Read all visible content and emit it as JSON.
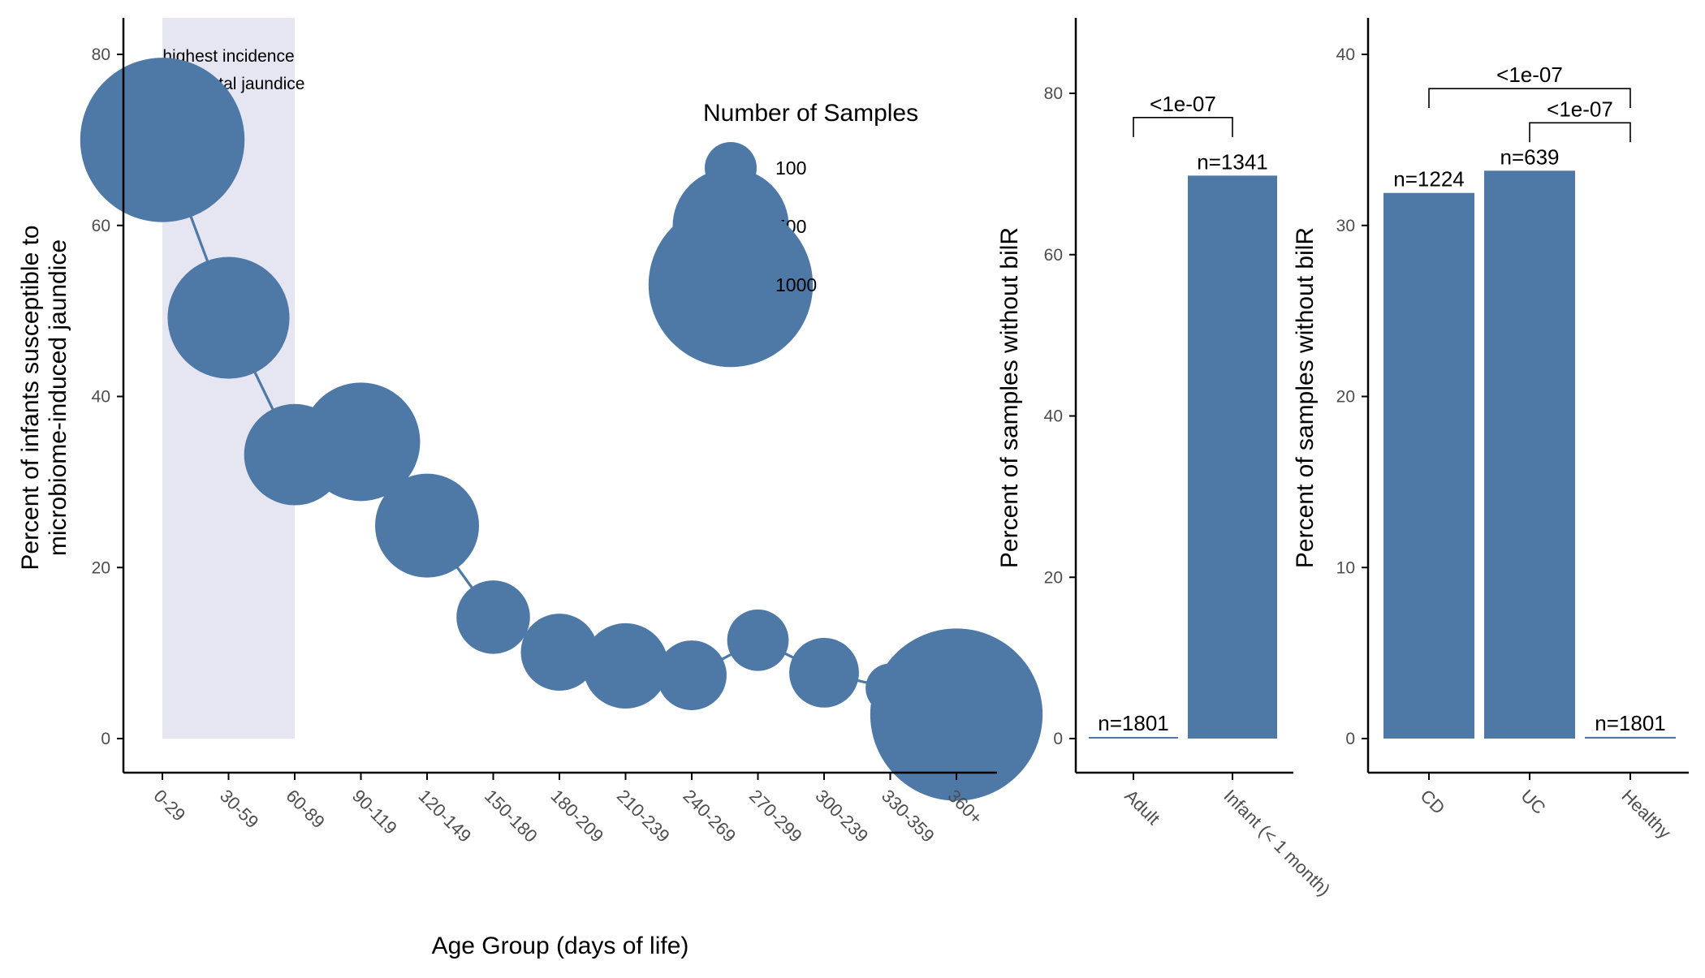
{
  "colors": {
    "series": "#4e79a7",
    "highlight": "#e6e6f2",
    "axis": "#000000",
    "tick_text": "#4d4d4d"
  },
  "chart_data": [
    {
      "type": "scatter",
      "title": "",
      "xlabel": "Age Group (days of life)",
      "ylabel": "Percent of infants susceptible to\nmicrobiome-induced jaundice",
      "ylabel_lines": [
        "Percent of infants susceptible to",
        "microbiome-induced jaundice"
      ],
      "ylim": [
        0,
        80
      ],
      "yticks": [
        0,
        20,
        40,
        60,
        80
      ],
      "categories": [
        "0-29",
        "30-59",
        "60-89",
        "90-119",
        "120-149",
        "150-180",
        "180-209",
        "210-239",
        "240-269",
        "270-299",
        "300-239",
        "330-359",
        "360+"
      ],
      "values": [
        70,
        49.2,
        33.2,
        34.7,
        24.9,
        14.2,
        10.1,
        8.5,
        7.4,
        11.5,
        7.7,
        5.9,
        2.8
      ],
      "sizes": [
        1000,
        550,
        380,
        520,
        400,
        200,
        220,
        270,
        180,
        140,
        180,
        90,
        1100
      ],
      "connect_points": true,
      "highlight_region": {
        "from": "0-29",
        "to": "60-89"
      },
      "annotation": [
        "highest incidence",
        "of neonatal jaundice"
      ],
      "legend": {
        "title": "Number of Samples",
        "placement": "top-right",
        "entries": [
          {
            "label": "100",
            "size": 100
          },
          {
            "label": "500",
            "size": 500
          },
          {
            "label": "1000",
            "size": 1000
          }
        ]
      },
      "grid": false
    },
    {
      "type": "bar",
      "title": "",
      "xlabel": "",
      "ylabel": "Percent of samples without bilR",
      "ylim": [
        0,
        80
      ],
      "yticks": [
        0,
        20,
        40,
        60,
        80
      ],
      "categories": [
        "Adult",
        "Infant (< 1 month)"
      ],
      "values": [
        0.1,
        69.8
      ],
      "bar_labels": [
        "n=1801",
        "n=1341"
      ],
      "comparisons": [
        {
          "from": "Adult",
          "to": "Infant (< 1 month)",
          "label": "<1e-07",
          "y": 77
        }
      ],
      "grid": false
    },
    {
      "type": "bar",
      "title": "",
      "xlabel": "",
      "ylabel": "Percent of samples without bilR",
      "ylim": [
        0,
        40
      ],
      "yticks": [
        0,
        10,
        20,
        30,
        40
      ],
      "categories": [
        "CD",
        "UC",
        "Healthy"
      ],
      "values": [
        31.9,
        33.2,
        0.1
      ],
      "bar_labels": [
        "n=1224",
        "n=639",
        "n=1801"
      ],
      "comparisons": [
        {
          "from": "CD",
          "to": "Healthy",
          "label": "<1e-07",
          "y": 38
        },
        {
          "from": "UC",
          "to": "Healthy",
          "label": "<1e-07",
          "y": 36
        }
      ],
      "grid": false
    }
  ]
}
